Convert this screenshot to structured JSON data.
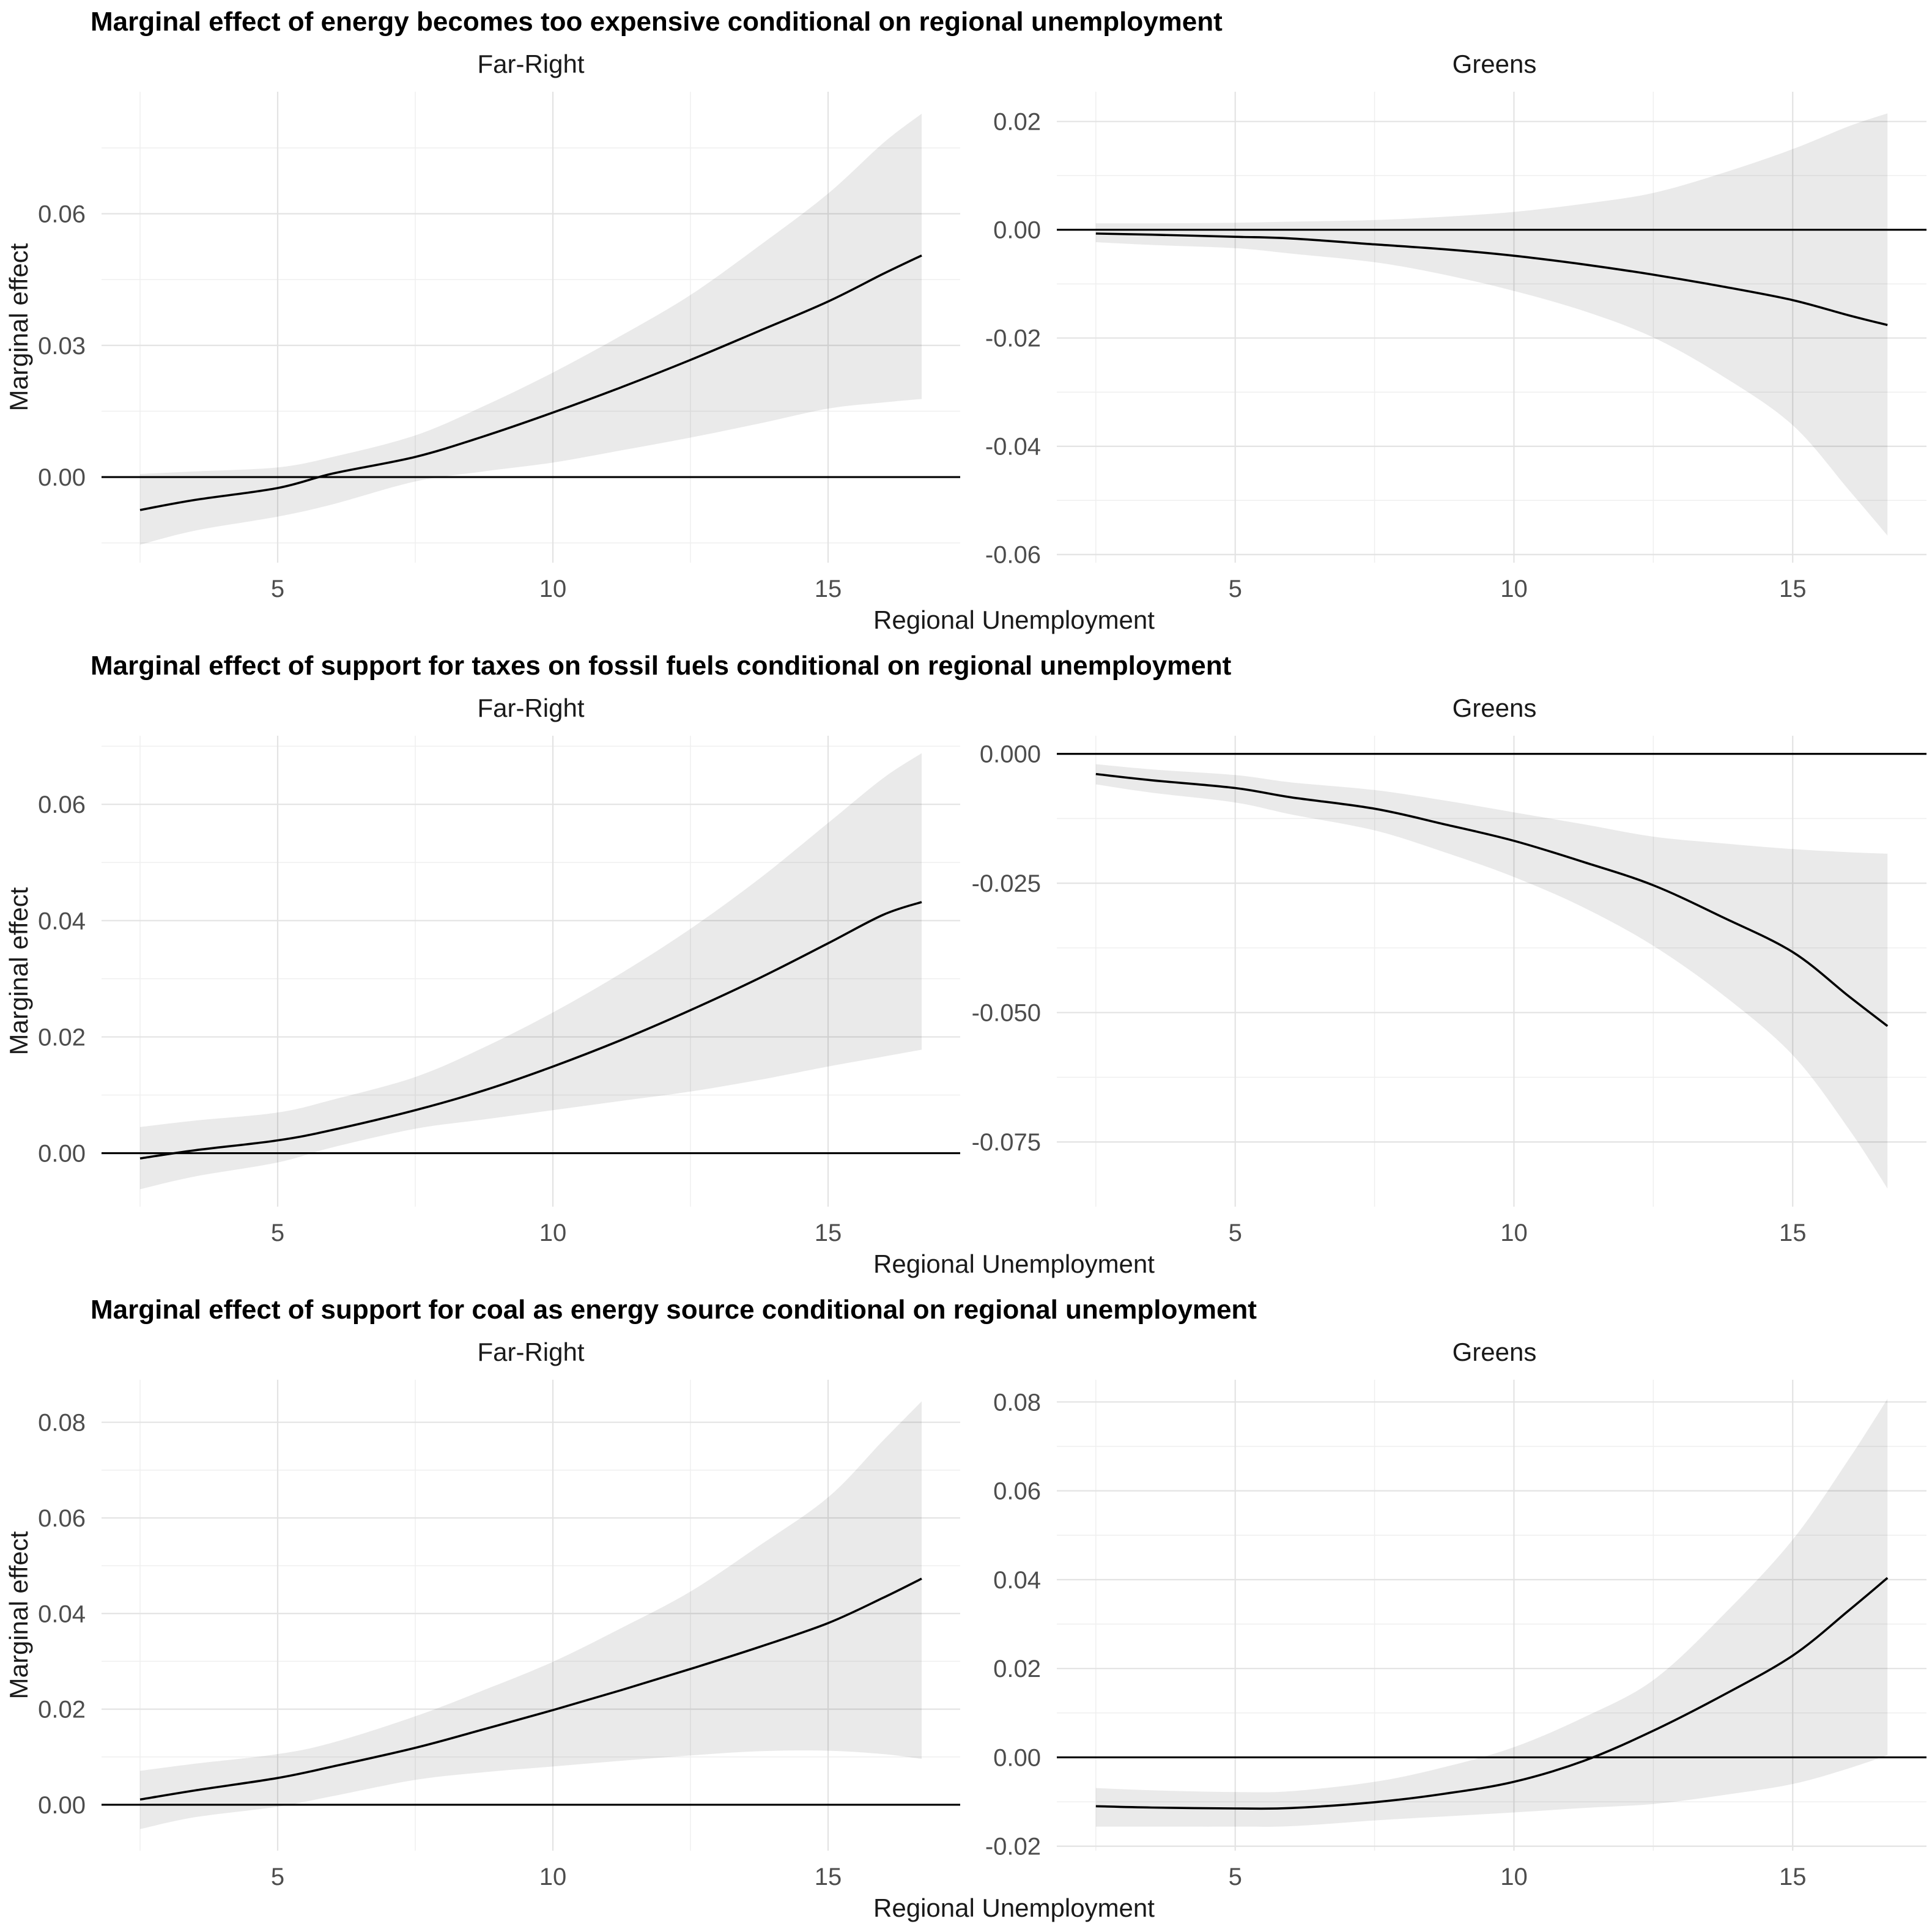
{
  "style": {
    "background": "#ffffff",
    "curve_color": "#000000",
    "zero_line_color": "#000000",
    "ribbon_color": "rgba(0,0,0,0.082)",
    "grid_major_color": "#e3e3e3",
    "grid_minor_color": "#efefef",
    "tick_text_color": "#4d4d4d"
  },
  "chart_data": [
    {
      "type": "line",
      "title": "Marginal effect of energy becomes too expensive conditional on regional unemployment",
      "xlabel": "Regional Unemployment",
      "ylabel": "Marginal effect",
      "legend": "none",
      "xlim": [
        1.8,
        17.4
      ],
      "x_ticks": [
        {
          "value": 5,
          "label": "5"
        },
        {
          "value": 10,
          "label": "10"
        },
        {
          "value": 15,
          "label": "15"
        }
      ],
      "x_minor": [
        2.5,
        7.5,
        12.5
      ],
      "panels": [
        {
          "facet": "Far-Right",
          "ylim": [
            -0.0195,
            0.0878
          ],
          "y_ticks": [
            {
              "value": 0.0,
              "label": "0.00"
            },
            {
              "value": 0.03,
              "label": "0.03"
            },
            {
              "value": 0.06,
              "label": "0.06"
            }
          ],
          "y_minor": [
            -0.015,
            0.015,
            0.045,
            0.075
          ],
          "x": [
            2.5,
            3.5,
            5,
            6,
            7.5,
            8.75,
            10,
            11.25,
            12.5,
            13.75,
            15,
            16,
            16.7
          ],
          "fit": [
            -0.0075,
            -0.0052,
            -0.0025,
            0.0008,
            0.0046,
            0.0093,
            0.0147,
            0.0205,
            0.0267,
            0.0333,
            0.04,
            0.0463,
            0.0505
          ],
          "ci_lower": [
            -0.0154,
            -0.0122,
            -0.009,
            -0.0062,
            -0.001,
            0.0013,
            0.0033,
            0.0061,
            0.009,
            0.0122,
            0.0156,
            0.017,
            0.0178
          ],
          "ci_upper": [
            0.0007,
            0.0013,
            0.0022,
            0.0046,
            0.0095,
            0.0162,
            0.0238,
            0.0323,
            0.0415,
            0.0527,
            0.0646,
            0.0761,
            0.0828
          ]
        },
        {
          "facet": "Greens",
          "ylim": [
            -0.0615,
            0.0255
          ],
          "y_ticks": [
            {
              "value": 0.02,
              "label": "0.02"
            },
            {
              "value": 0.0,
              "label": "0.00"
            },
            {
              "value": -0.02,
              "label": "-0.02"
            },
            {
              "value": -0.04,
              "label": "-0.04"
            },
            {
              "value": -0.06,
              "label": "-0.06"
            }
          ],
          "y_minor": [
            0.01,
            -0.01,
            -0.03,
            -0.05
          ],
          "x": [
            2.5,
            3.5,
            5,
            6,
            7.5,
            8.75,
            10,
            11.25,
            12.5,
            13.75,
            15,
            16,
            16.7
          ],
          "fit": [
            -0.0007,
            -0.0009,
            -0.0013,
            -0.0016,
            -0.0027,
            -0.0036,
            -0.0048,
            -0.0064,
            -0.0083,
            -0.0105,
            -0.013,
            -0.0158,
            -0.0176
          ],
          "ci_lower": [
            -0.0023,
            -0.0028,
            -0.0034,
            -0.0044,
            -0.006,
            -0.0083,
            -0.0113,
            -0.015,
            -0.0199,
            -0.0271,
            -0.0361,
            -0.048,
            -0.0565
          ],
          "ci_upper": [
            0.0012,
            0.0012,
            0.0013,
            0.0015,
            0.0018,
            0.0024,
            0.0033,
            0.0048,
            0.0068,
            0.0105,
            0.0149,
            0.0191,
            0.0215
          ]
        }
      ]
    },
    {
      "type": "line",
      "title": "Marginal effect of support for taxes on fossil fuels conditional on regional unemployment",
      "xlabel": "Regional Unemployment",
      "ylabel": "Marginal effect",
      "legend": "none",
      "xlim": [
        1.8,
        17.4
      ],
      "x_ticks": [
        {
          "value": 5,
          "label": "5"
        },
        {
          "value": 10,
          "label": "10"
        },
        {
          "value": 15,
          "label": "15"
        }
      ],
      "x_minor": [
        2.5,
        7.5,
        12.5
      ],
      "panels": [
        {
          "facet": "Far-Right",
          "ylim": [
            -0.0092,
            0.0718
          ],
          "y_ticks": [
            {
              "value": 0.0,
              "label": "0.00"
            },
            {
              "value": 0.02,
              "label": "0.02"
            },
            {
              "value": 0.04,
              "label": "0.04"
            },
            {
              "value": 0.06,
              "label": "0.06"
            }
          ],
          "y_minor": [
            0.01,
            0.03,
            0.05,
            0.07
          ],
          "x": [
            2.5,
            3.5,
            5,
            6,
            7.5,
            8.75,
            10,
            11.25,
            12.5,
            13.75,
            15,
            16,
            16.7
          ],
          "fit": [
            -0.0009,
            0.0005,
            0.0022,
            0.004,
            0.0074,
            0.0108,
            0.0149,
            0.0195,
            0.0246,
            0.0301,
            0.0361,
            0.041,
            0.0432
          ],
          "ci_lower": [
            -0.0062,
            -0.004,
            -0.0016,
            0.001,
            0.0042,
            0.0058,
            0.0074,
            0.009,
            0.0106,
            0.0126,
            0.0149,
            0.0166,
            0.0178
          ],
          "ci_upper": [
            0.0045,
            0.0056,
            0.007,
            0.0092,
            0.0131,
            0.0182,
            0.0242,
            0.031,
            0.0386,
            0.0472,
            0.0568,
            0.0645,
            0.0688
          ]
        },
        {
          "facet": "Greens",
          "ylim": [
            -0.0875,
            0.0035
          ],
          "y_ticks": [
            {
              "value": 0.0,
              "label": "0.000"
            },
            {
              "value": -0.025,
              "label": "-0.025"
            },
            {
              "value": -0.05,
              "label": "-0.050"
            },
            {
              "value": -0.075,
              "label": "-0.075"
            }
          ],
          "y_minor": [
            -0.0125,
            -0.0375,
            -0.0625
          ],
          "x": [
            2.5,
            3.5,
            5,
            6,
            7.5,
            8.75,
            10,
            11.25,
            12.5,
            13.75,
            15,
            16,
            16.7
          ],
          "fit": [
            -0.0039,
            -0.0051,
            -0.0066,
            -0.0084,
            -0.0106,
            -0.0136,
            -0.0168,
            -0.0209,
            -0.0254,
            -0.0316,
            -0.0383,
            -0.0468,
            -0.0526
          ],
          "ci_lower": [
            -0.0059,
            -0.0075,
            -0.0094,
            -0.0117,
            -0.0148,
            -0.019,
            -0.0238,
            -0.0297,
            -0.0371,
            -0.0466,
            -0.0582,
            -0.0724,
            -0.084
          ],
          "ci_upper": [
            -0.002,
            -0.003,
            -0.0041,
            -0.0055,
            -0.007,
            -0.009,
            -0.0113,
            -0.0136,
            -0.016,
            -0.0173,
            -0.0184,
            -0.019,
            -0.0193
          ]
        }
      ]
    },
    {
      "type": "line",
      "title": "Marginal effect of support for coal as energy source conditional on regional unemployment",
      "xlabel": "Regional Unemployment",
      "ylabel": "Marginal effect",
      "legend": "none",
      "xlim": [
        1.8,
        17.4
      ],
      "x_ticks": [
        {
          "value": 5,
          "label": "5"
        },
        {
          "value": 10,
          "label": "10"
        },
        {
          "value": 15,
          "label": "15"
        }
      ],
      "x_minor": [
        2.5,
        7.5,
        12.5
      ],
      "panels": [
        {
          "facet": "Far-Right",
          "ylim": [
            -0.0096,
            0.0889
          ],
          "y_ticks": [
            {
              "value": 0.0,
              "label": "0.00"
            },
            {
              "value": 0.02,
              "label": "0.02"
            },
            {
              "value": 0.04,
              "label": "0.04"
            },
            {
              "value": 0.06,
              "label": "0.06"
            },
            {
              "value": 0.08,
              "label": "0.08"
            }
          ],
          "y_minor": [
            0.01,
            0.03,
            0.05,
            0.07
          ],
          "x": [
            2.5,
            3.5,
            5,
            6,
            7.5,
            8.75,
            10,
            11.25,
            12.5,
            13.75,
            15,
            16,
            16.7
          ],
          "fit": [
            0.0011,
            0.003,
            0.0056,
            0.008,
            0.0119,
            0.0158,
            0.0198,
            0.024,
            0.0284,
            0.033,
            0.038,
            0.0433,
            0.0473
          ],
          "ci_lower": [
            -0.0051,
            -0.0026,
            -0.0004,
            0.0018,
            0.0052,
            0.0068,
            0.008,
            0.0092,
            0.0103,
            0.0112,
            0.0113,
            0.0106,
            0.0096
          ],
          "ci_upper": [
            0.0071,
            0.0086,
            0.0106,
            0.013,
            0.0185,
            0.024,
            0.0299,
            0.037,
            0.0446,
            0.0542,
            0.0643,
            0.0762,
            0.0844
          ]
        },
        {
          "facet": "Greens",
          "ylim": [
            -0.021,
            0.085
          ],
          "y_ticks": [
            {
              "value": -0.02,
              "label": "-0.02"
            },
            {
              "value": 0.0,
              "label": "0.00"
            },
            {
              "value": 0.02,
              "label": "0.02"
            },
            {
              "value": 0.04,
              "label": "0.04"
            },
            {
              "value": 0.06,
              "label": "0.06"
            },
            {
              "value": 0.08,
              "label": "0.08"
            }
          ],
          "y_minor": [
            -0.01,
            0.01,
            0.03,
            0.05,
            0.07
          ],
          "x": [
            2.5,
            3.5,
            5,
            6,
            7.5,
            8.75,
            10,
            11.25,
            12.5,
            13.75,
            15,
            16,
            16.7
          ],
          "fit": [
            -0.011,
            -0.0113,
            -0.0115,
            -0.0114,
            -0.0101,
            -0.0082,
            -0.0055,
            -0.0008,
            0.006,
            0.014,
            0.0229,
            0.033,
            0.0404
          ],
          "ci_lower": [
            -0.0156,
            -0.0156,
            -0.0156,
            -0.0155,
            -0.0142,
            -0.0133,
            -0.0124,
            -0.0114,
            -0.0105,
            -0.0085,
            -0.006,
            -0.0025,
            0.0005
          ],
          "ci_upper": [
            -0.0069,
            -0.0074,
            -0.0078,
            -0.0076,
            -0.0055,
            -0.0022,
            0.0023,
            0.009,
            0.0174,
            0.032,
            0.049,
            0.067,
            0.0807
          ]
        }
      ]
    }
  ]
}
